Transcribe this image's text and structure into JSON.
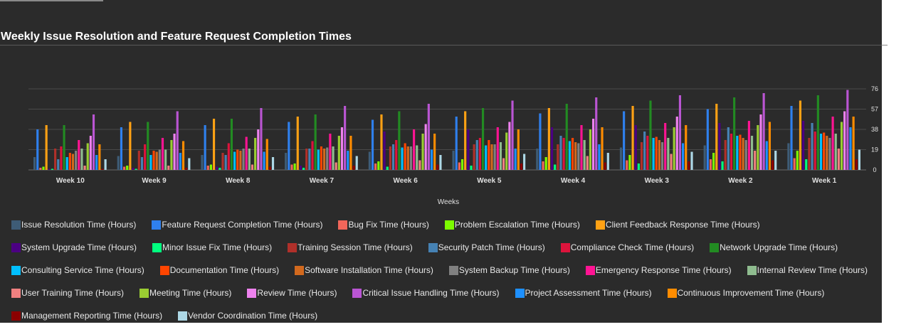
{
  "chart_data": {
    "type": "bar",
    "title": "Weekly Issue Resolution and Feature Request Completion Times",
    "xlabel": "Weeks",
    "ylabel": "",
    "ylim": [
      0,
      76
    ],
    "yticks": [
      0,
      19,
      38,
      57,
      76
    ],
    "grid": true,
    "legend_position": "bottom",
    "categories": [
      "Week 10",
      "Week 9",
      "Week 8",
      "Week 7",
      "Week 6",
      "Week 5",
      "Week 4",
      "Week 3",
      "Week 2",
      "Week 1"
    ],
    "series": [
      {
        "name": "Issue Resolution Time (Hours)",
        "color": "#3e5c76",
        "values": [
          12,
          13,
          14,
          16,
          17,
          18,
          20,
          21,
          23,
          25
        ]
      },
      {
        "name": "Feature Request Completion Time (Hours)",
        "color": "#2f80ed",
        "values": [
          38,
          40,
          42,
          45,
          47,
          50,
          53,
          55,
          57,
          60
        ]
      },
      {
        "name": "Bug Fix Time (Hours)",
        "color": "#f2665a",
        "values": [
          2,
          3,
          4,
          5,
          6,
          7,
          8,
          9,
          10,
          11
        ]
      },
      {
        "name": "Problem Escalation Time (Hours)",
        "color": "#7cfc00",
        "values": [
          3,
          4,
          5,
          6,
          8,
          10,
          12,
          14,
          16,
          18
        ]
      },
      {
        "name": "Client Feedback Response Time (Hours)",
        "color": "#ffa114",
        "values": [
          42,
          45,
          48,
          50,
          52,
          55,
          58,
          60,
          62,
          65
        ]
      },
      {
        "name": "System Upgrade Time (Hours)",
        "color": "#4b0082",
        "values": [
          1,
          2,
          3,
          4,
          36,
          38,
          40,
          42,
          44,
          46
        ]
      },
      {
        "name": "Minor Issue Fix Time (Hours)",
        "color": "#00ff7f",
        "values": [
          1,
          1,
          2,
          2,
          3,
          4,
          5,
          6,
          8,
          10
        ]
      },
      {
        "name": "Training Session Time (Hours)",
        "color": "#b0302a",
        "values": [
          20,
          18,
          16,
          20,
          22,
          24,
          24,
          26,
          28,
          30
        ]
      },
      {
        "name": "Security Patch Time (Hours)",
        "color": "#4682b4",
        "values": [
          10,
          12,
          14,
          20,
          24,
          28,
          32,
          36,
          40,
          44
        ]
      },
      {
        "name": "Compliance Check Time (Hours)",
        "color": "#dc143c",
        "values": [
          22,
          24,
          25,
          27,
          28,
          30,
          30,
          32,
          34,
          36
        ]
      },
      {
        "name": "Network Upgrade Time (Hours)",
        "color": "#228b22",
        "values": [
          42,
          45,
          48,
          52,
          55,
          58,
          62,
          65,
          68,
          70
        ]
      },
      {
        "name": "Consulting Service Time (Hours)",
        "color": "#00bfff",
        "values": [
          12,
          14,
          17,
          19,
          21,
          23,
          27,
          30,
          32,
          34
        ]
      },
      {
        "name": "Documentation Time (Hours)",
        "color": "#ff4500",
        "values": [
          16,
          18,
          19,
          22,
          25,
          28,
          30,
          31,
          33,
          35
        ]
      },
      {
        "name": "Software Installation Time (Hours)",
        "color": "#d2691e",
        "values": [
          15,
          17,
          18,
          20,
          22,
          24,
          26,
          28,
          30,
          32
        ]
      },
      {
        "name": "System Backup Time (Hours)",
        "color": "#808080",
        "values": [
          18,
          19,
          20,
          21,
          22,
          24,
          25,
          26,
          28,
          30
        ]
      },
      {
        "name": "Emergency Response Time (Hours)",
        "color": "#ff1493",
        "values": [
          28,
          30,
          31,
          34,
          38,
          40,
          42,
          44,
          46,
          50
        ]
      },
      {
        "name": "Internal Review Time (Hours)",
        "color": "#8fbc8f",
        "values": [
          20,
          19,
          20,
          22,
          23,
          26,
          28,
          30,
          32,
          34
        ]
      },
      {
        "name": "User Training Time (Hours)",
        "color": "#f08080",
        "values": [
          4,
          4,
          5,
          7,
          9,
          11,
          13,
          15,
          18,
          20
        ]
      },
      {
        "name": "Meeting Time (Hours)",
        "color": "#9acd32",
        "values": [
          25,
          28,
          30,
          32,
          34,
          35,
          38,
          40,
          42,
          45
        ]
      },
      {
        "name": "Review Time (Hours)",
        "color": "#ee82ee",
        "values": [
          32,
          34,
          38,
          40,
          43,
          45,
          48,
          50,
          52,
          55
        ]
      },
      {
        "name": "Critical Issue Handling Time (Hours)",
        "color": "#ba55d3",
        "values": [
          52,
          55,
          58,
          60,
          62,
          65,
          68,
          70,
          72,
          75
        ]
      },
      {
        "name": "Project Assessment Time (Hours)",
        "color": "#1e90ff",
        "values": [
          14,
          16,
          17,
          18,
          19,
          20,
          24,
          25,
          27,
          40
        ]
      },
      {
        "name": "Continuous Improvement Time (Hours)",
        "color": "#ff8c00",
        "values": [
          24,
          27,
          29,
          32,
          34,
          38,
          40,
          42,
          45,
          50
        ]
      },
      {
        "name": "Management Reporting Time (Hours)",
        "color": "#8b0000",
        "values": [
          1,
          2,
          3,
          4,
          5,
          6,
          7,
          8,
          9,
          10
        ]
      },
      {
        "name": "Vendor Coordination Time (Hours)",
        "color": "#add8e6",
        "values": [
          10,
          11,
          12,
          13,
          14,
          15,
          16,
          17,
          18,
          19
        ]
      }
    ]
  }
}
